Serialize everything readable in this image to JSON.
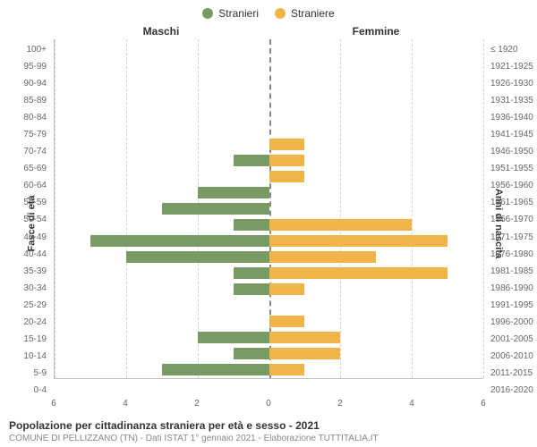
{
  "legend": {
    "male": {
      "label": "Stranieri",
      "color": "#799a63"
    },
    "female": {
      "label": "Straniere",
      "color": "#f0b448"
    }
  },
  "column_headers": {
    "left": "Maschi",
    "right": "Femmine"
  },
  "axis_titles": {
    "left": "Fasce di età",
    "right": "Anni di nascita"
  },
  "chart": {
    "type": "population-pyramid",
    "x_max": 6,
    "x_ticks": [
      6,
      4,
      2,
      0,
      2,
      4,
      6
    ],
    "background_color": "#ffffff",
    "grid_color": "#d4d4d4",
    "center_line_color": "#888888",
    "bar_height_ratio": 0.72,
    "rows": [
      {
        "age": "100+",
        "birth": "≤ 1920",
        "male": 0,
        "female": 0
      },
      {
        "age": "95-99",
        "birth": "1921-1925",
        "male": 0,
        "female": 0
      },
      {
        "age": "90-94",
        "birth": "1926-1930",
        "male": 0,
        "female": 0
      },
      {
        "age": "85-89",
        "birth": "1931-1935",
        "male": 0,
        "female": 0
      },
      {
        "age": "80-84",
        "birth": "1936-1940",
        "male": 0,
        "female": 0
      },
      {
        "age": "75-79",
        "birth": "1941-1945",
        "male": 0,
        "female": 0
      },
      {
        "age": "70-74",
        "birth": "1946-1950",
        "male": 0,
        "female": 1
      },
      {
        "age": "65-69",
        "birth": "1951-1955",
        "male": 1,
        "female": 1
      },
      {
        "age": "60-64",
        "birth": "1956-1960",
        "male": 0,
        "female": 1
      },
      {
        "age": "55-59",
        "birth": "1961-1965",
        "male": 2,
        "female": 0
      },
      {
        "age": "50-54",
        "birth": "1966-1970",
        "male": 3,
        "female": 0
      },
      {
        "age": "45-49",
        "birth": "1971-1975",
        "male": 1,
        "female": 4
      },
      {
        "age": "40-44",
        "birth": "1976-1980",
        "male": 5,
        "female": 5
      },
      {
        "age": "35-39",
        "birth": "1981-1985",
        "male": 4,
        "female": 3
      },
      {
        "age": "30-34",
        "birth": "1986-1990",
        "male": 1,
        "female": 5
      },
      {
        "age": "25-29",
        "birth": "1991-1995",
        "male": 1,
        "female": 1
      },
      {
        "age": "20-24",
        "birth": "1996-2000",
        "male": 0,
        "female": 0
      },
      {
        "age": "15-19",
        "birth": "2001-2005",
        "male": 0,
        "female": 1
      },
      {
        "age": "10-14",
        "birth": "2006-2010",
        "male": 2,
        "female": 2
      },
      {
        "age": "5-9",
        "birth": "2011-2015",
        "male": 1,
        "female": 2
      },
      {
        "age": "0-4",
        "birth": "2016-2020",
        "male": 3,
        "female": 1
      }
    ]
  },
  "footer": {
    "title": "Popolazione per cittadinanza straniera per età e sesso - 2021",
    "subtitle": "COMUNE DI PELLIZZANO (TN) - Dati ISTAT 1° gennaio 2021 - Elaborazione TUTTITALIA.IT"
  },
  "label_fontsize": 10,
  "tick_fontsize": 10
}
